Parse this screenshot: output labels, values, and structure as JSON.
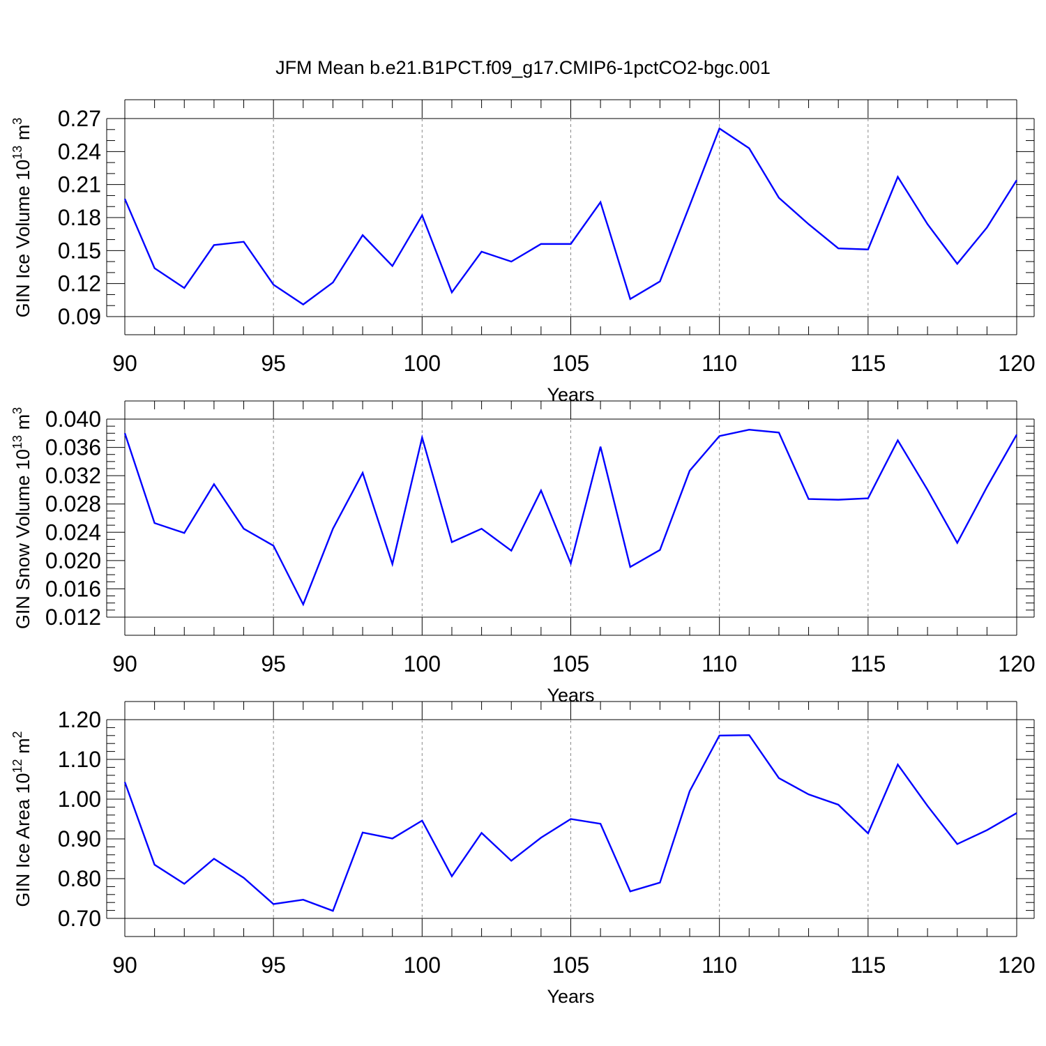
{
  "title": "JFM Mean b.e21.B1PCT.f09_g17.CMIP6-1pctCO2-bgc.001",
  "line_color": "#0000ff",
  "chart_data": [
    {
      "type": "line",
      "xlabel": "Years",
      "ylabel": "GIN Ice Volume 10",
      "ylabel_exp": "13",
      "ylabel_unit": " m",
      "ylabel_unit_exp": "3",
      "xlim": [
        90,
        120
      ],
      "ylim": [
        0.09,
        0.27
      ],
      "xticks": [
        90,
        95,
        100,
        105,
        110,
        115,
        120
      ],
      "xtick_labels": [
        "90",
        "95",
        "100",
        "105",
        "110",
        "115",
        "120"
      ],
      "yticks": [
        0.09,
        0.12,
        0.15,
        0.18,
        0.21,
        0.24,
        0.27
      ],
      "ytick_labels": [
        "0.09",
        "0.12",
        "0.15",
        "0.18",
        "0.21",
        "0.24",
        "0.27"
      ],
      "ytick_minor_step": 0.01,
      "grid": "vertical dashed at major x ticks",
      "x": [
        90,
        91,
        92,
        93,
        94,
        95,
        96,
        97,
        98,
        99,
        100,
        101,
        102,
        103,
        104,
        105,
        106,
        107,
        108,
        109,
        110,
        111,
        112,
        113,
        114,
        115,
        116,
        117,
        118,
        119,
        120
      ],
      "series": [
        {
          "values": [
            0.197,
            0.134,
            0.116,
            0.155,
            0.158,
            0.119,
            0.101,
            0.121,
            0.164,
            0.136,
            0.182,
            0.112,
            0.149,
            0.14,
            0.156,
            0.156,
            0.194,
            0.106,
            0.122,
            0.191,
            0.261,
            0.243,
            0.198,
            0.174,
            0.152,
            0.151,
            0.217,
            0.174,
            0.138,
            0.171,
            0.214
          ]
        }
      ]
    },
    {
      "type": "line",
      "xlabel": "Years",
      "ylabel": "GIN Snow Volume 10",
      "ylabel_exp": "13",
      "ylabel_unit": " m",
      "ylabel_unit_exp": "3",
      "xlim": [
        90,
        120
      ],
      "ylim": [
        0.012,
        0.04
      ],
      "xticks": [
        90,
        95,
        100,
        105,
        110,
        115,
        120
      ],
      "xtick_labels": [
        "90",
        "95",
        "100",
        "105",
        "110",
        "115",
        "120"
      ],
      "yticks": [
        0.012,
        0.016,
        0.02,
        0.024,
        0.028,
        0.032,
        0.036,
        0.04
      ],
      "ytick_labels": [
        "0.012",
        "0.016",
        "0.020",
        "0.024",
        "0.028",
        "0.032",
        "0.036",
        "0.040"
      ],
      "ytick_minor_step": 0.001,
      "grid": "vertical dashed at major x ticks",
      "x": [
        90,
        91,
        92,
        93,
        94,
        95,
        96,
        97,
        98,
        99,
        100,
        101,
        102,
        103,
        104,
        105,
        106,
        107,
        108,
        109,
        110,
        111,
        112,
        113,
        114,
        115,
        116,
        117,
        118,
        119,
        120
      ],
      "series": [
        {
          "values": [
            0.038,
            0.0253,
            0.0239,
            0.0308,
            0.0245,
            0.0221,
            0.0138,
            0.0245,
            0.0324,
            0.0195,
            0.0374,
            0.0226,
            0.0245,
            0.0214,
            0.0299,
            0.0196,
            0.0361,
            0.0191,
            0.0215,
            0.0327,
            0.0376,
            0.0385,
            0.0381,
            0.0287,
            0.0286,
            0.0288,
            0.037,
            0.03,
            0.0225,
            0.0304,
            0.0378
          ]
        }
      ]
    },
    {
      "type": "line",
      "xlabel": "Years",
      "ylabel": "GIN Ice Area 10",
      "ylabel_exp": "12",
      "ylabel_unit": " m",
      "ylabel_unit_exp": "2",
      "xlim": [
        90,
        120
      ],
      "ylim": [
        0.7,
        1.2
      ],
      "xticks": [
        90,
        95,
        100,
        105,
        110,
        115,
        120
      ],
      "xtick_labels": [
        "90",
        "95",
        "100",
        "105",
        "110",
        "115",
        "120"
      ],
      "yticks": [
        0.7,
        0.8,
        0.9,
        1.0,
        1.1,
        1.2
      ],
      "ytick_labels": [
        "0.70",
        "0.80",
        "0.90",
        "1.00",
        "1.10",
        "1.20"
      ],
      "ytick_minor_step": 0.02,
      "grid": "vertical dashed at major x ticks",
      "x": [
        90,
        91,
        92,
        93,
        94,
        95,
        96,
        97,
        98,
        99,
        100,
        101,
        102,
        103,
        104,
        105,
        106,
        107,
        108,
        109,
        110,
        111,
        112,
        113,
        114,
        115,
        116,
        117,
        118,
        119,
        120
      ],
      "series": [
        {
          "values": [
            1.043,
            0.835,
            0.787,
            0.85,
            0.802,
            0.736,
            0.747,
            0.719,
            0.916,
            0.901,
            0.946,
            0.806,
            0.915,
            0.845,
            0.903,
            0.95,
            0.938,
            0.768,
            0.79,
            1.02,
            1.16,
            1.161,
            1.053,
            1.012,
            0.986,
            0.914,
            1.087,
            0.983,
            0.887,
            0.922,
            0.965
          ]
        }
      ]
    }
  ]
}
